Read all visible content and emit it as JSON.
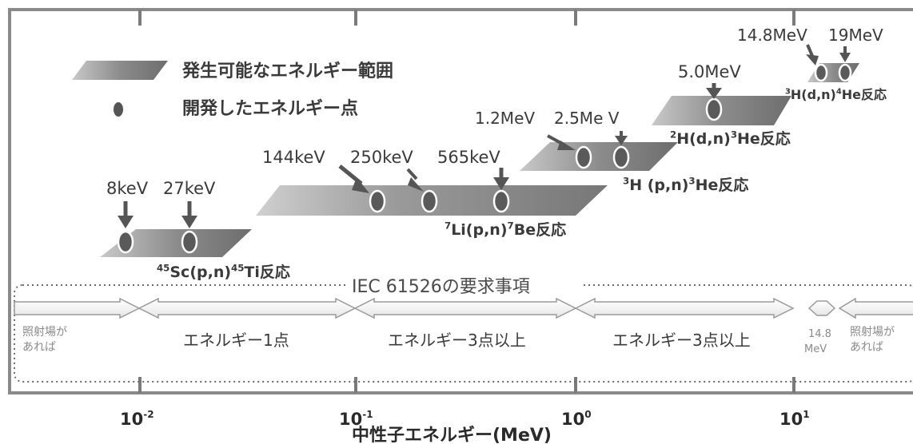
{
  "legend": {
    "range_label": "発生可能なエネルギー範囲",
    "point_label": "開発したエネルギー点"
  },
  "reactions": [
    {
      "id": "sc",
      "label_parts": [
        {
          "t": "45",
          "sup": true
        },
        {
          "t": "Sc(p,n)"
        },
        {
          "t": "45",
          "sup": true
        },
        {
          "t": "Ti反応"
        }
      ]
    },
    {
      "id": "li",
      "label_parts": [
        {
          "t": "7",
          "sup": true
        },
        {
          "t": "Li(p,n)"
        },
        {
          "t": "7",
          "sup": true
        },
        {
          "t": "Be反応"
        }
      ]
    },
    {
      "id": "h_pn",
      "label_parts": [
        {
          "t": "3",
          "sup": true
        },
        {
          "t": "H (p,n)"
        },
        {
          "t": "3",
          "sup": true
        },
        {
          "t": "He反応"
        }
      ]
    },
    {
      "id": "h_dn2",
      "label_parts": [
        {
          "t": "2",
          "sup": true
        },
        {
          "t": "H(d,n)"
        },
        {
          "t": "3",
          "sup": true
        },
        {
          "t": "He反応"
        }
      ]
    },
    {
      "id": "h_dn3",
      "label_parts": [
        {
          "t": "3",
          "sup": true
        },
        {
          "t": "H(d,n)"
        },
        {
          "t": "4",
          "sup": true
        },
        {
          "t": "He反応"
        }
      ]
    }
  ],
  "energy_points": {
    "sc": [
      "8keV",
      "27keV"
    ],
    "li": [
      "144keV",
      "250keV",
      "565keV"
    ],
    "h_pn": [
      "1.2MeV",
      "2.5Me V"
    ],
    "h_dn2": [
      "5.0MeV"
    ],
    "h_dn3": [
      "14.8MeV",
      "19MeV"
    ]
  },
  "iec": {
    "title": "IEC 61526の要求事項",
    "seg1": [
      "照射場が",
      "あれば"
    ],
    "seg2": "エネルギー1点",
    "seg3": "エネルギー3点以上",
    "seg4": "エネルギー3点以上",
    "seg5": [
      "14.8",
      "MeV"
    ],
    "seg6": [
      "照射場が",
      "あれば"
    ]
  },
  "axis": {
    "ticks": [
      {
        "base": "10",
        "exp": "-2"
      },
      {
        "base": "10",
        "exp": "-1"
      },
      {
        "base": "10",
        "exp": "0"
      },
      {
        "base": "10",
        "exp": "1"
      }
    ],
    "label": "中性子エネルギー(MeV)"
  },
  "colors": {
    "band_light": "#c9c9c9",
    "band_dark": "#6d6d6d",
    "dot": "#555555",
    "text": "#3a3a3a",
    "frame": "#8a8a8a"
  }
}
